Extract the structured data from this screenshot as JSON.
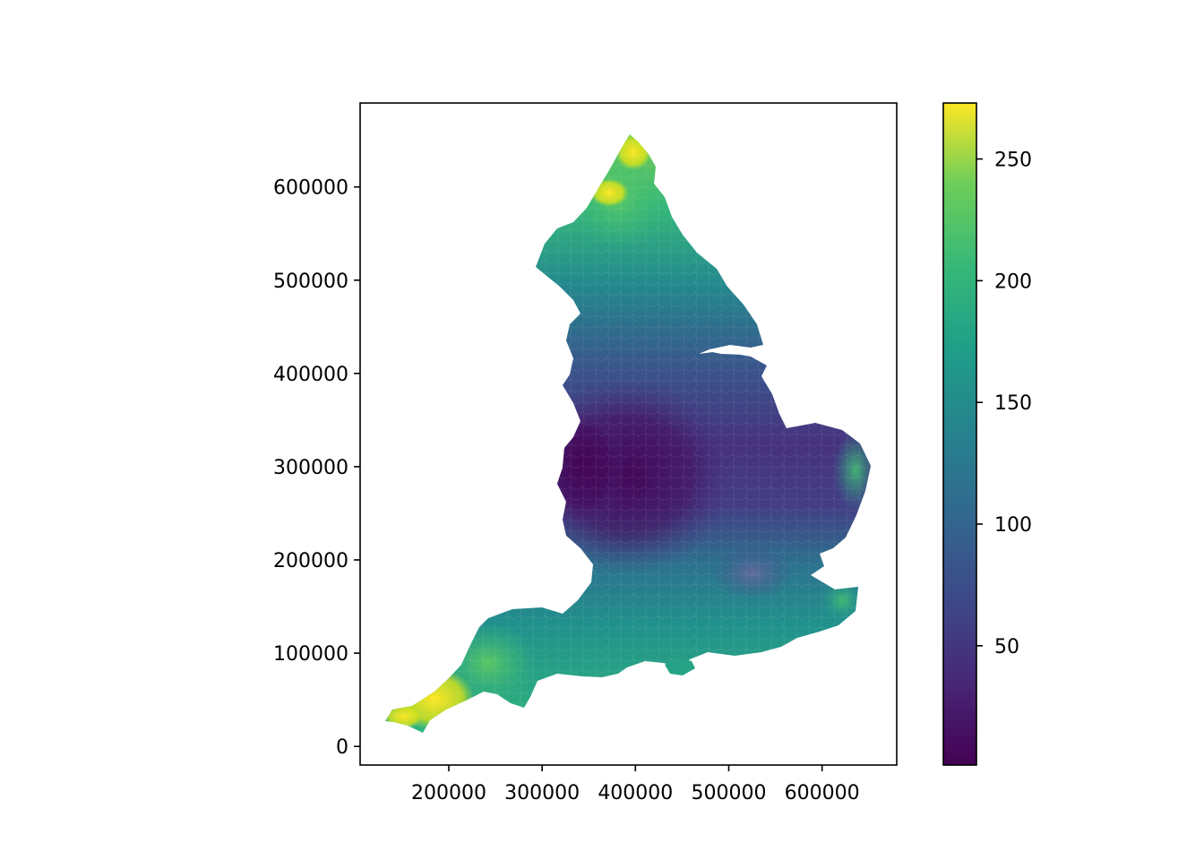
{
  "map": {
    "x_axis": {
      "ticks": [
        200000,
        300000,
        400000,
        500000,
        600000
      ],
      "tick_labels": [
        "200000",
        "300000",
        "400000",
        "500000",
        "600000"
      ],
      "range": [
        105000,
        680000
      ]
    },
    "y_axis": {
      "ticks": [
        0,
        100000,
        200000,
        300000,
        400000,
        500000,
        600000
      ],
      "tick_labels": [
        "0",
        "100000",
        "200000",
        "300000",
        "400000",
        "500000",
        "600000"
      ],
      "range": [
        -20000,
        690000
      ]
    },
    "colorbar": {
      "colormap": "viridis",
      "range": [
        1,
        273
      ],
      "ticks": [
        50,
        100,
        150,
        200,
        250
      ],
      "tick_labels": [
        "50",
        "100",
        "150",
        "200",
        "250"
      ]
    },
    "colors": {
      "low": "#440154",
      "mid_low": "#3b528b",
      "mid": "#21918c",
      "mid_high": "#5ec962",
      "high": "#fde725",
      "frame": "#000000"
    }
  }
}
